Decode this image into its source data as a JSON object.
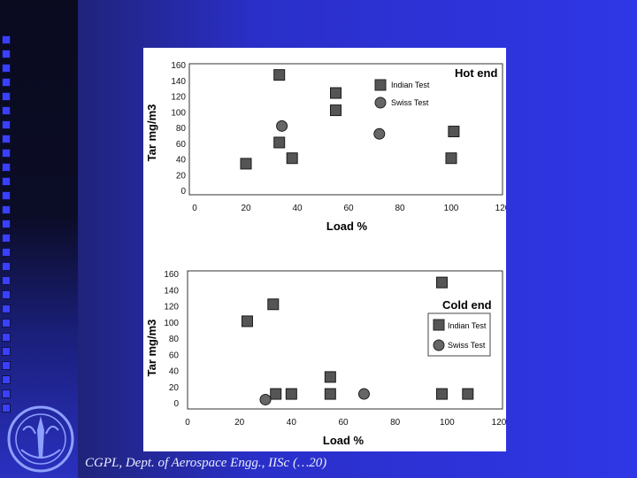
{
  "footer": {
    "text": "CGPL, Dept. of Aerospace Engg., IISc (…20)"
  },
  "colors": {
    "background": "#2a30d8",
    "indian_marker": "#555555",
    "swiss_marker": "#6a6a6a"
  },
  "chart_data": [
    {
      "type": "scatter",
      "title": "Hot end",
      "xlabel": "Load %",
      "ylabel": "Tar mg/m3",
      "xlim": [
        0,
        120
      ],
      "ylim": [
        0,
        160
      ],
      "xticks": [
        "0",
        "20",
        "40",
        "60",
        "80",
        "100",
        "120"
      ],
      "yticks": [
        "0",
        "20",
        "40",
        "60",
        "80",
        "100",
        "120",
        "140",
        "160"
      ],
      "legend_position": "top-right",
      "series": [
        {
          "name": "Indian Test",
          "marker": "square",
          "points": [
            [
              20,
              35
            ],
            [
              33,
              148
            ],
            [
              33,
              62
            ],
            [
              38,
              42
            ],
            [
              55,
              125
            ],
            [
              55,
              103
            ],
            [
              100,
              42
            ],
            [
              101,
              76
            ]
          ]
        },
        {
          "name": "Swiss Test",
          "marker": "circle",
          "points": [
            [
              34,
              83
            ],
            [
              72,
              73
            ]
          ]
        }
      ]
    },
    {
      "type": "scatter",
      "title": "Cold end",
      "xlabel": "Load %",
      "ylabel": "Tar mg/m3",
      "xlim": [
        0,
        120
      ],
      "ylim": [
        0,
        160
      ],
      "xticks": [
        "0",
        "20",
        "40",
        "60",
        "80",
        "100",
        "120"
      ],
      "yticks": [
        "0",
        "20",
        "40",
        "60",
        "80",
        "100",
        "120",
        "140",
        "160"
      ],
      "legend_position": "right",
      "series": [
        {
          "name": "Indian Test",
          "marker": "square",
          "points": [
            [
              23,
              102
            ],
            [
              33,
              123
            ],
            [
              34,
              12
            ],
            [
              40,
              12
            ],
            [
              55,
              33
            ],
            [
              55,
              12
            ],
            [
              98,
              150
            ],
            [
              98,
              12
            ],
            [
              108,
              12
            ]
          ]
        },
        {
          "name": "Swiss Test",
          "marker": "circle",
          "points": [
            [
              30,
              5
            ],
            [
              68,
              12
            ]
          ]
        }
      ]
    }
  ]
}
